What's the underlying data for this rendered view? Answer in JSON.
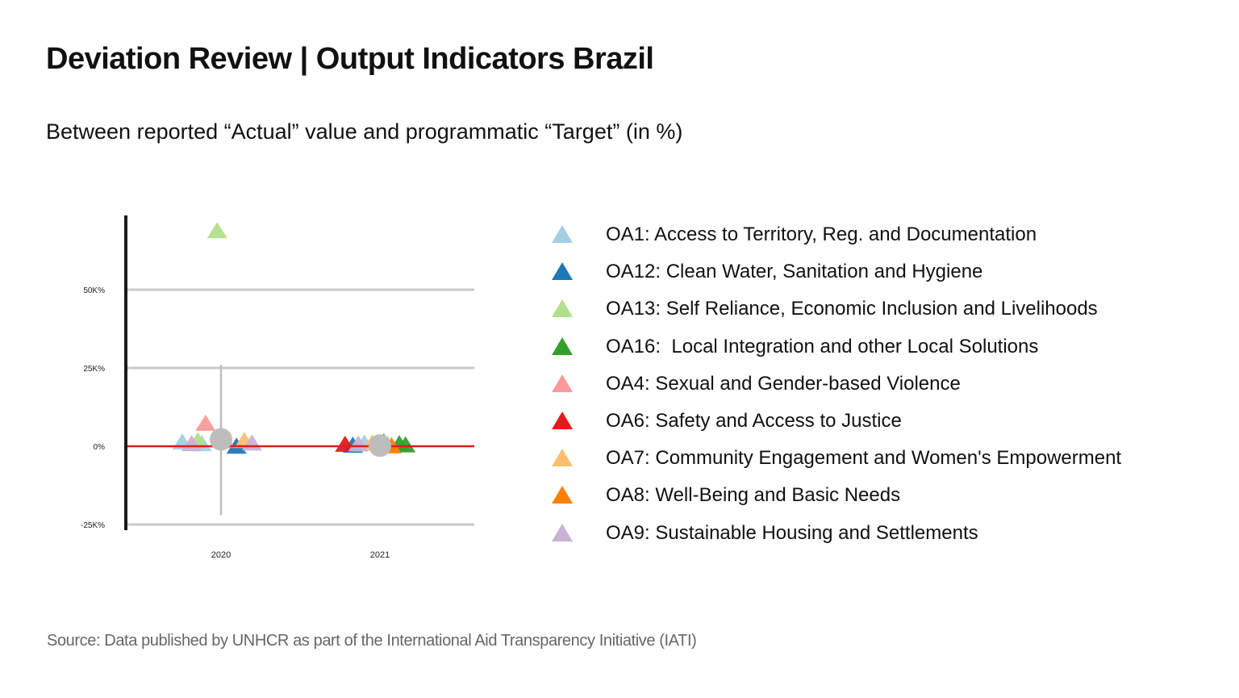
{
  "title": "Deviation Review | Output Indicators Brazil",
  "subtitle": "Between reported “Actual” value and programmatic “Target” (in %)",
  "source": "Source: Data published by UNHCR as part of the International Aid Transparency Initiative (IATI)",
  "chart_data": {
    "type": "scatter",
    "title": "",
    "xlabel": "",
    "ylabel": "",
    "categories": [
      "2020",
      "2021"
    ],
    "ylim": [
      -25000,
      75000
    ],
    "y_ticks": [
      {
        "value": 50000,
        "label": "50K%"
      },
      {
        "value": 25000,
        "label": "25K%"
      },
      {
        "value": 0,
        "label": "0%"
      },
      {
        "value": -25000,
        "label": "-25K%"
      }
    ],
    "grid": true,
    "reference_line": {
      "value": 0,
      "color": "#e31a1c"
    },
    "legend_position": "right",
    "series": [
      {
        "name": "OA1: Access to Territory, Reg. and Documentation",
        "color": "#a6cee3",
        "points": [
          {
            "x": "2020",
            "offset": -0.5,
            "y": 1500
          },
          {
            "x": "2020",
            "offset": -0.25,
            "y": 1000
          },
          {
            "x": "2021",
            "offset": -0.2,
            "y": 1200
          }
        ]
      },
      {
        "name": "OA12: Clean Water, Sanitation and Hygiene",
        "color": "#1f78b4",
        "points": [
          {
            "x": "2020",
            "offset": 0.2,
            "y": 200
          },
          {
            "x": "2021",
            "offset": -0.35,
            "y": 500
          },
          {
            "x": "2021",
            "offset": 0.05,
            "y": 1500
          }
        ]
      },
      {
        "name": "OA13: Self Reliance, Economic Inclusion and Livelihoods",
        "color": "#b2df8a",
        "points": [
          {
            "x": "2020",
            "offset": -0.05,
            "y": 69000
          },
          {
            "x": "2020",
            "offset": -0.3,
            "y": 2000
          },
          {
            "x": "2021",
            "offset": 0.1,
            "y": 800
          }
        ]
      },
      {
        "name": "OA16:  Local Integration and other Local Solutions",
        "color": "#33a02c",
        "points": [
          {
            "x": "2021",
            "offset": 0.25,
            "y": 1000
          },
          {
            "x": "2021",
            "offset": 0.33,
            "y": 600
          }
        ]
      },
      {
        "name": "OA4: Sexual and Gender-based Violence",
        "color": "#fb9a99",
        "points": [
          {
            "x": "2020",
            "offset": -0.2,
            "y": 7500
          },
          {
            "x": "2020",
            "offset": 0.05,
            "y": 2000
          }
        ]
      },
      {
        "name": "OA6: Safety and Access to Justice",
        "color": "#e31a1c",
        "points": [
          {
            "x": "2021",
            "offset": -0.45,
            "y": 800
          }
        ]
      },
      {
        "name": "OA7: Community Engagement and Women's Empowerment",
        "color": "#fdbf6f",
        "points": [
          {
            "x": "2020",
            "offset": 0.3,
            "y": 2000
          },
          {
            "x": "2021",
            "offset": -0.1,
            "y": 1200
          }
        ]
      },
      {
        "name": "OA8: Well-Being and Basic Needs",
        "color": "#ff7f00",
        "points": [
          {
            "x": "2021",
            "offset": 0.15,
            "y": 300
          }
        ]
      },
      {
        "name": "OA9: Sustainable Housing and Settlements",
        "color": "#cab2d6",
        "points": [
          {
            "x": "2020",
            "offset": -0.38,
            "y": 1000
          },
          {
            "x": "2020",
            "offset": 0.4,
            "y": 1200
          },
          {
            "x": "2021",
            "offset": -0.28,
            "y": 900
          }
        ]
      }
    ],
    "summary": [
      {
        "x": "2020",
        "mean": 2200,
        "whisker_low": -22000,
        "whisker_high": 26000,
        "color": "#bdbdbd"
      },
      {
        "x": "2021",
        "mean": 200,
        "color": "#bdbdbd"
      }
    ]
  }
}
